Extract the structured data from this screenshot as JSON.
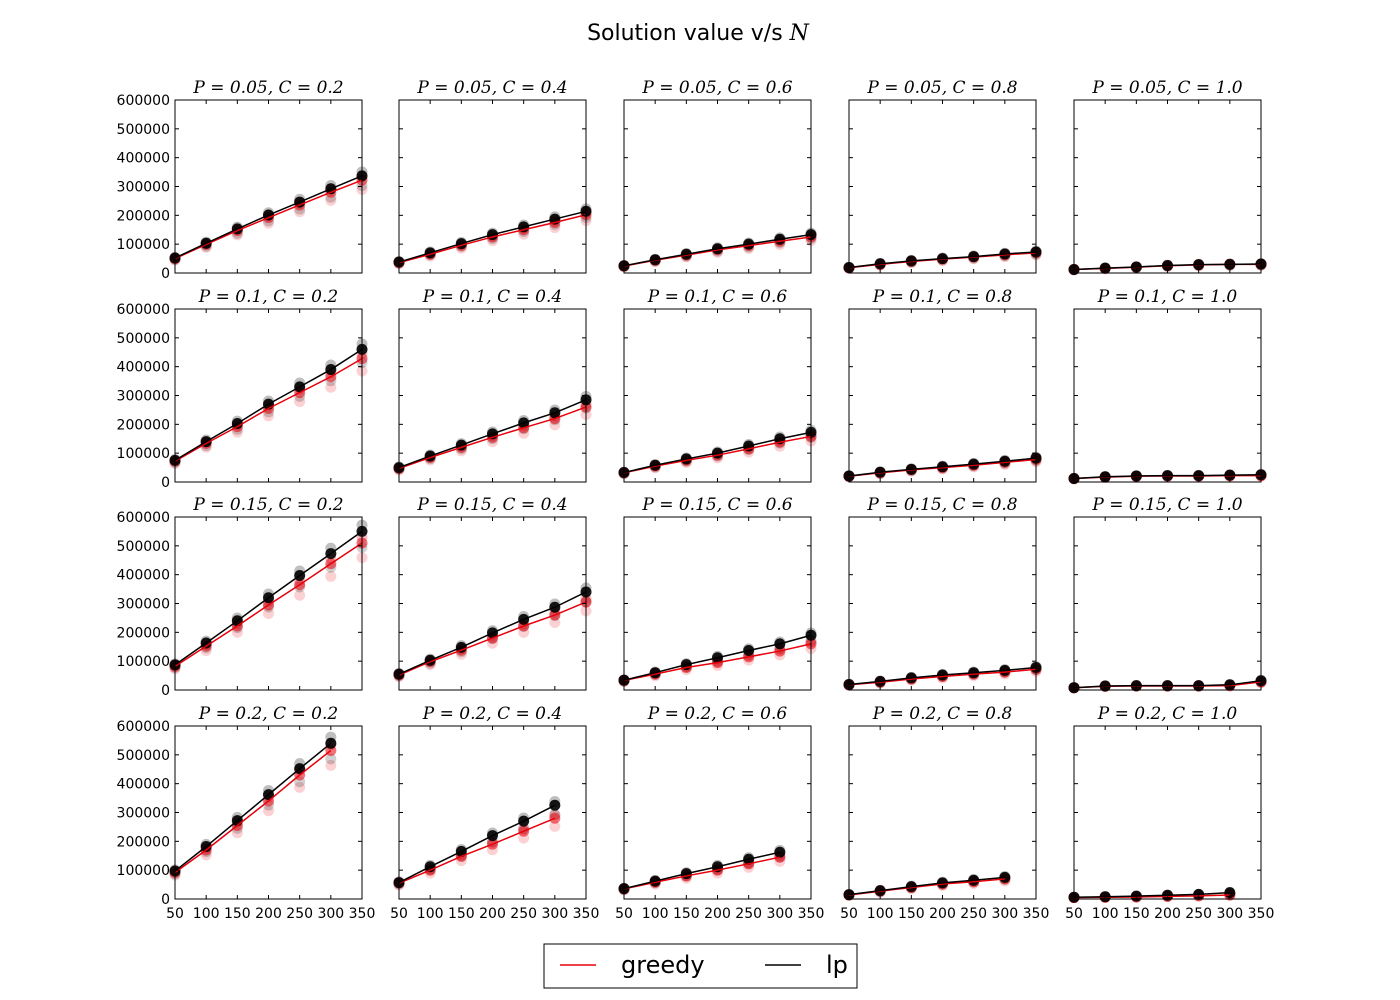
{
  "figure": {
    "title_prefix": "Solution value v/s ",
    "title_var": "N"
  },
  "chart_data": {
    "type": "line",
    "title": "Solution value v/s N",
    "x": [
      50,
      100,
      150,
      200,
      250,
      300,
      350
    ],
    "x_ticks": [
      "50",
      "100",
      "150",
      "200",
      "250",
      "300",
      "350"
    ],
    "xlim": [
      50,
      350
    ],
    "y_ticks": [
      "0",
      "100000",
      "200000",
      "300000",
      "400000",
      "500000",
      "600000"
    ],
    "ylim": [
      0,
      600000
    ],
    "legend": {
      "placement": "bottom-center",
      "entries": [
        {
          "name": "greedy",
          "color": "#e8000b"
        },
        {
          "name": "lp",
          "color": "#000000"
        }
      ]
    },
    "panels": [
      {
        "title": "P = 0.05, C = 0.2",
        "greedy": [
          50000,
          99000,
          147000,
          192000,
          236000,
          280000,
          322000
        ],
        "lp": [
          52000,
          103000,
          153000,
          201000,
          246000,
          292000,
          337000
        ]
      },
      {
        "title": "P = 0.05, C = 0.4",
        "greedy": [
          36000,
          65000,
          96000,
          125000,
          150000,
          175000,
          202000
        ],
        "lp": [
          38000,
          70000,
          102000,
          133000,
          160000,
          187000,
          214000
        ]
      },
      {
        "title": "P = 0.05, C = 0.6",
        "greedy": [
          24000,
          44000,
          62000,
          80000,
          95000,
          110000,
          125000
        ],
        "lp": [
          25000,
          46000,
          65000,
          84000,
          100000,
          117000,
          133000
        ]
      },
      {
        "title": "P = 0.05, C = 0.8",
        "greedy": [
          18000,
          30000,
          40000,
          48000,
          55000,
          63000,
          70000
        ],
        "lp": [
          19000,
          32000,
          42000,
          50000,
          57000,
          66000,
          73000
        ]
      },
      {
        "title": "P = 0.05, C = 1.0",
        "greedy": [
          12000,
          16000,
          20000,
          25000,
          28000,
          30000,
          30000
        ],
        "lp": [
          12000,
          17000,
          21000,
          26000,
          29000,
          30000,
          31000
        ]
      },
      {
        "title": "P = 0.1, C = 0.2",
        "greedy": [
          72000,
          134000,
          192000,
          255000,
          310000,
          365000,
          428000
        ],
        "lp": [
          75000,
          140000,
          203000,
          270000,
          330000,
          390000,
          460000
        ]
      },
      {
        "title": "P = 0.1, C = 0.4",
        "greedy": [
          47000,
          85000,
          120000,
          155000,
          188000,
          220000,
          260000
        ],
        "lp": [
          50000,
          90000,
          128000,
          167000,
          205000,
          240000,
          285000
        ]
      },
      {
        "title": "P = 0.1, C = 0.6",
        "greedy": [
          32000,
          55000,
          75000,
          93000,
          115000,
          138000,
          158000
        ],
        "lp": [
          33000,
          58000,
          80000,
          100000,
          125000,
          150000,
          172000
        ]
      },
      {
        "title": "P = 0.1, C = 0.8",
        "greedy": [
          20000,
          32000,
          42000,
          50000,
          58000,
          68000,
          78000
        ],
        "lp": [
          21000,
          34000,
          44000,
          53000,
          62000,
          72000,
          83000
        ]
      },
      {
        "title": "P = 0.1, C = 1.0",
        "greedy": [
          12000,
          17000,
          20000,
          21000,
          21000,
          22000,
          22000
        ],
        "lp": [
          12000,
          18000,
          21000,
          22000,
          22000,
          24000,
          25000
        ]
      },
      {
        "title": "P = 0.15, C = 0.2",
        "greedy": [
          82000,
          152000,
          222000,
          295000,
          365000,
          438000,
          510000
        ],
        "lp": [
          87000,
          163000,
          240000,
          320000,
          397000,
          473000,
          550000
        ]
      },
      {
        "title": "P = 0.15, C = 0.4",
        "greedy": [
          52000,
          98000,
          138000,
          180000,
          222000,
          260000,
          305000
        ],
        "lp": [
          55000,
          103000,
          148000,
          198000,
          245000,
          287000,
          340000
        ]
      },
      {
        "title": "P = 0.15, C = 0.6",
        "greedy": [
          33000,
          55000,
          78000,
          95000,
          115000,
          135000,
          160000
        ],
        "lp": [
          34000,
          60000,
          88000,
          112000,
          137000,
          160000,
          190000
        ]
      },
      {
        "title": "P = 0.15, C = 0.8",
        "greedy": [
          18000,
          27000,
          38000,
          47000,
          55000,
          62000,
          72000
        ],
        "lp": [
          19000,
          30000,
          42000,
          52000,
          60000,
          68000,
          78000
        ]
      },
      {
        "title": "P = 0.15, C = 1.0",
        "greedy": [
          8000,
          13000,
          14000,
          14000,
          14000,
          15000,
          28000
        ],
        "lp": [
          8000,
          14000,
          15000,
          15000,
          15000,
          18000,
          32000
        ]
      },
      {
        "title": "P = 0.2, C = 0.2",
        "greedy": [
          92000,
          170000,
          255000,
          340000,
          430000,
          515000
        ],
        "lp": [
          97000,
          182000,
          272000,
          362000,
          452000,
          540000
        ]
      },
      {
        "title": "P = 0.2, C = 0.4",
        "greedy": [
          55000,
          100000,
          148000,
          190000,
          235000,
          280000
        ],
        "lp": [
          57000,
          112000,
          165000,
          220000,
          270000,
          325000
        ]
      },
      {
        "title": "P = 0.2, C = 0.6",
        "greedy": [
          35000,
          58000,
          80000,
          100000,
          122000,
          145000
        ],
        "lp": [
          36000,
          62000,
          88000,
          112000,
          138000,
          162000
        ]
      },
      {
        "title": "P = 0.2, C = 0.8",
        "greedy": [
          14000,
          27000,
          40000,
          52000,
          60000,
          70000
        ],
        "lp": [
          15000,
          29000,
          43000,
          56000,
          65000,
          75000
        ]
      },
      {
        "title": "P = 0.2, C = 1.0",
        "greedy": [
          5000,
          6000,
          7000,
          9000,
          11000,
          14000
        ],
        "lp": [
          6000,
          8000,
          10000,
          13000,
          16000,
          22000
        ]
      }
    ]
  }
}
